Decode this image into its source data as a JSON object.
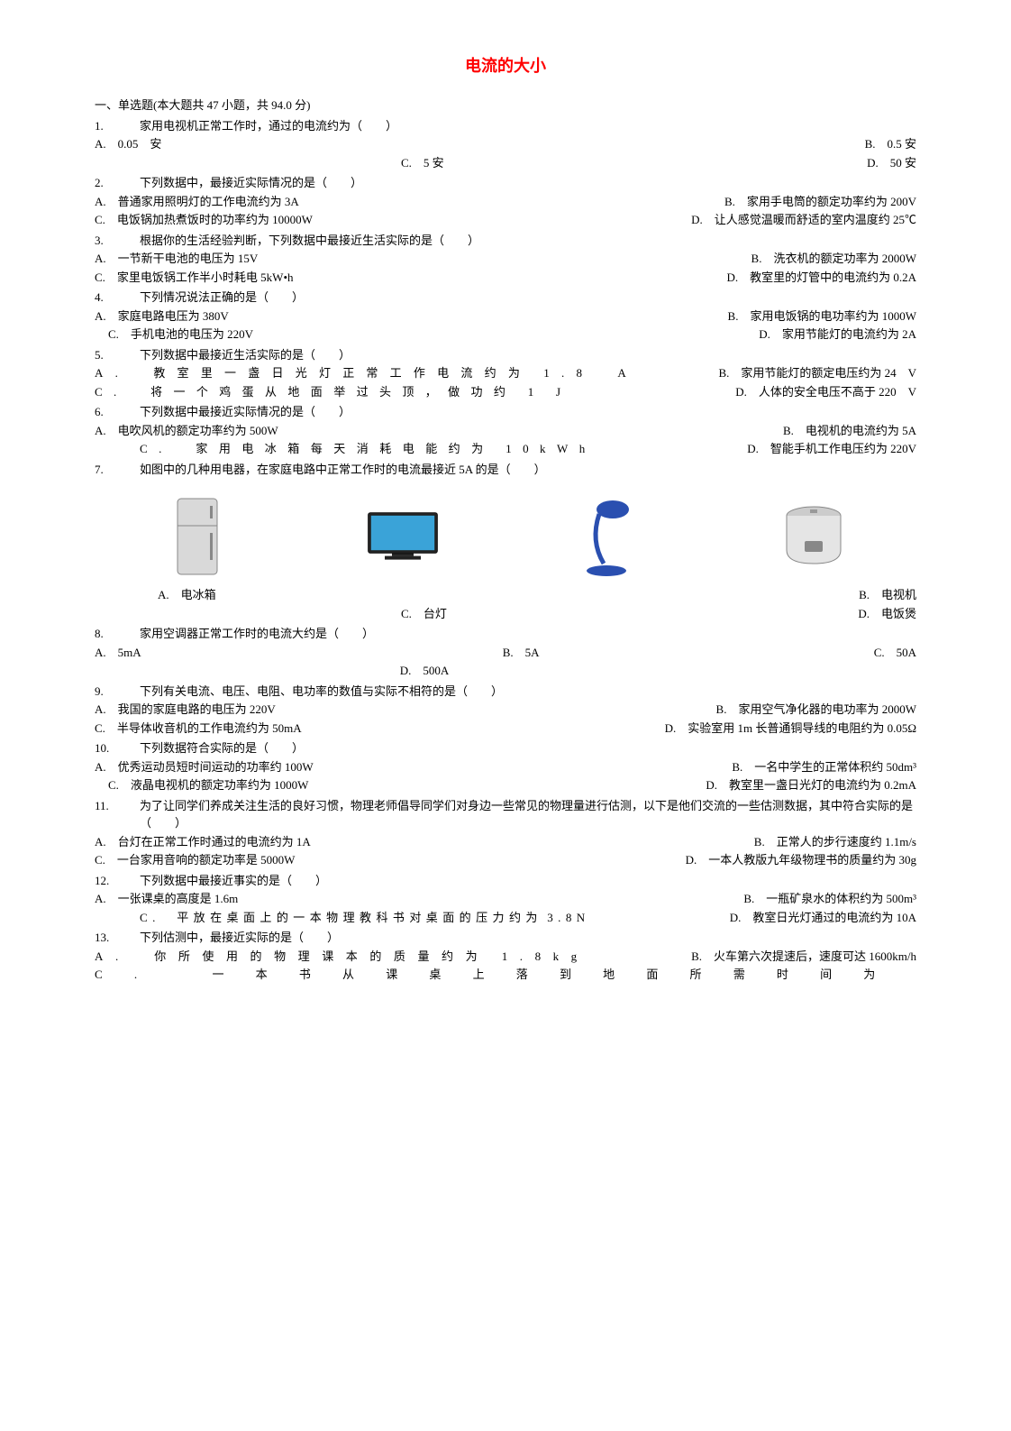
{
  "title": "电流的大小",
  "section_header": "一、单选题(本大题共 47 小题，共 94.0 分)",
  "questions": [
    {
      "num": "1.",
      "stem": "家用电视机正常工作时，通过的电流约为（　　）",
      "optA": "A.　0.05　安",
      "optB": "B.　0.5 安",
      "optC": "C.　5 安",
      "optD": "D.　50 安"
    },
    {
      "num": "2.",
      "stem": "下列数据中，最接近实际情况的是（　　）",
      "optA": "A.　普通家用照明灯的工作电流约为 3A",
      "optB": "B.　家用手电筒的额定功率约为 200V",
      "optC": "C.　电饭锅加热煮饭时的功率约为 10000W",
      "optD": "D.　让人感觉温暖而舒适的室内温度约 25℃"
    },
    {
      "num": "3.",
      "stem": "根据你的生活经验判断，下列数据中最接近生活实际的是（　　）",
      "optA": "A.　一节新干电池的电压为 15V",
      "optB": "B.　洗衣机的额定功率为 2000W",
      "optC": "C.　家里电饭锅工作半小时耗电 5kW•h",
      "optD": "D.　教室里的灯管中的电流约为 0.2A"
    },
    {
      "num": "4.",
      "stem": "下列情况说法正确的是（　　）",
      "optA": "A.　家庭电路电压为 380V",
      "optB": "B.　家用电饭锅的电功率约为 1000W",
      "optC": "C.　手机电池的电压为 220V",
      "optD": "D.　家用节能灯的电流约为 2A"
    },
    {
      "num": "5.",
      "stem": "下列数据中最接近生活实际的是（　　）",
      "optA": "A.　教室里一盏日光灯正常工作电流约为 1.8　A",
      "optB": "B.　家用节能灯的额定电压约为 24　V",
      "optC": "C.　将一个鸡蛋从地面举过头顶，做功约 1 J",
      "optD": "D.　人体的安全电压不高于 220　V"
    },
    {
      "num": "6.",
      "stem": "下列数据中最接近实际情况的是（　　）",
      "optA": "A.　电吹风机的额定功率约为 500W",
      "optB": "B.　电视机的电流约为 5A",
      "optC": "C.　家用电冰箱每天消耗电能约为 10kWh",
      "optD": "D.　智能手机工作电压约为 220V"
    },
    {
      "num": "7.",
      "stem": "如图中的几种用电器，在家庭电路中正常工作时的电流最接近 5A 的是（　　）",
      "images": [
        "fridge",
        "tv",
        "lamp",
        "ricecooker"
      ],
      "optA": "A.　电冰箱",
      "optB": "B.　电视机",
      "optC": "C.　台灯",
      "optD": "D.　电饭煲"
    },
    {
      "num": "8.",
      "stem": "家用空调器正常工作时的电流大约是（　　）",
      "optA": "A.　5mA",
      "optB": "B.　5A",
      "optC": "C.　50A",
      "optD": "D.　500A"
    },
    {
      "num": "9.",
      "stem": "下列有关电流、电压、电阻、电功率的数值与实际不相符的是（　　）",
      "optA": "A.　我国的家庭电路的电压为 220V",
      "optB": "B.　家用空气净化器的电功率为 2000W",
      "optC": "C.　半导体收音机的工作电流约为 50mA",
      "optD": "D.　实验室用 1m 长普通铜导线的电阻约为 0.05Ω"
    },
    {
      "num": "10.",
      "stem": "下列数据符合实际的是（　　）",
      "optA": "A.　优秀运动员短时间运动的功率约 100W",
      "optB": "B.　一名中学生的正常体积约 50dm³",
      "optC": "C.　液晶电视机的额定功率约为 1000W",
      "optD": "D.　教室里一盏日光灯的电流约为 0.2mA"
    },
    {
      "num": "11.",
      "stem": "为了让同学们养成关注生活的良好习惯，物理老师倡导同学们对身边一些常见的物理量进行估测，以下是他们交流的一些估测数据，其中符合实际的是（　　）",
      "optA": "A.　台灯在正常工作时通过的电流约为 1A",
      "optB": "B.　正常人的步行速度约 1.1m/s",
      "optC": "C.　一台家用音响的额定功率是 5000W",
      "optD": "D.　一本人教版九年级物理书的质量约为 30g"
    },
    {
      "num": "12.",
      "stem": "下列数据中最接近事实的是（　　）",
      "optA": "A.　一张课桌的高度是 1.6m",
      "optB": "B.　一瓶矿泉水的体积约为 500m³",
      "optC": "C.　平放在桌面上的一本物理教科书对桌面的压力约为 3.8N",
      "optD": "D.　教室日光灯通过的电流约为 10A"
    },
    {
      "num": "13.",
      "stem": "下列估测中，最接近实际的是（　　）",
      "optA": "A.　你所使用的物理课本的质量约为 1.8kg",
      "optB": "B.　火车第六次提速后，速度可达 1600km/h",
      "optC": "C.　一本书从课桌上落到地面所需时间为",
      "optD": ""
    }
  ],
  "colors": {
    "title": "#ff0000",
    "text": "#000000",
    "background": "#ffffff"
  },
  "font_sizes": {
    "title": 18,
    "body": 13
  }
}
